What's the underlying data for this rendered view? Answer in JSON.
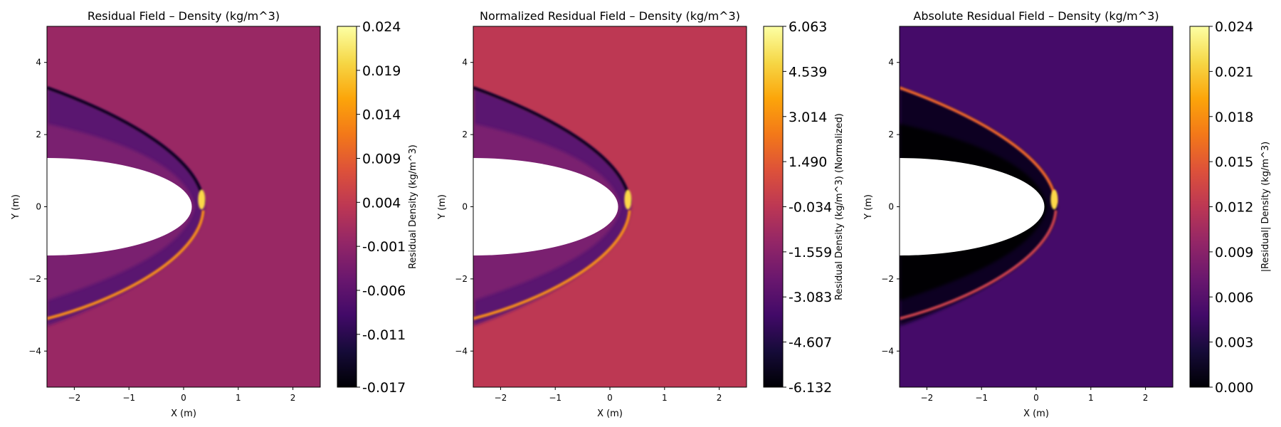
{
  "chart_data": [
    {
      "type": "heatmap",
      "title": "Residual Field – Density (kg/m^3)",
      "xlabel": "X (m)",
      "ylabel": "Y (m)",
      "xlim": [
        -2.5,
        2.5
      ],
      "ylim": [
        -5,
        5
      ],
      "xticks": [
        -2,
        -1,
        0,
        1,
        2
      ],
      "xtick_labels": [
        "−2",
        "−1",
        "0",
        "1",
        "2"
      ],
      "yticks": [
        -4,
        -2,
        0,
        2,
        4
      ],
      "ytick_labels": [
        "−4",
        "−2",
        "0",
        "2",
        "4"
      ],
      "colormap": "inferno",
      "background_value": 0.0,
      "colorbar": {
        "label": "Residual Density (kg/m^3)",
        "range": [
          -0.017,
          0.024
        ],
        "ticks": [
          -0.017,
          -0.011,
          -0.006,
          -0.001,
          0.004,
          0.009,
          0.014,
          0.019,
          0.024
        ],
        "tick_labels": [
          "-0.017",
          "-0.011",
          "-0.006",
          "-0.001",
          "0.004",
          "0.009",
          "0.014",
          "0.019",
          "0.024"
        ]
      }
    },
    {
      "type": "heatmap",
      "title": "Normalized Residual Field – Density (kg/m^3)",
      "xlabel": "X (m)",
      "ylabel": "Y (m)",
      "xlim": [
        -2.5,
        2.5
      ],
      "ylim": [
        -5,
        5
      ],
      "xticks": [
        -2,
        -1,
        0,
        1,
        2
      ],
      "xtick_labels": [
        "−2",
        "−1",
        "0",
        "1",
        "2"
      ],
      "yticks": [
        -4,
        -2,
        0,
        2,
        4
      ],
      "ytick_labels": [
        "−4",
        "−2",
        "0",
        "2",
        "4"
      ],
      "colormap": "inferno",
      "background_value": 0.0,
      "colorbar": {
        "label": "Residual Density (kg/m^3) (Normalized)",
        "range": [
          -6.132,
          6.063
        ],
        "ticks": [
          -6.132,
          -4.607,
          -3.083,
          -1.559,
          -0.034,
          1.49,
          3.014,
          4.539,
          6.063
        ],
        "tick_labels": [
          "-6.132",
          "-4.607",
          "-3.083",
          "-1.559",
          "-0.034",
          "1.490",
          "3.014",
          "4.539",
          "6.063"
        ]
      }
    },
    {
      "type": "heatmap",
      "title": "Absolute Residual Field – Density (kg/m^3)",
      "xlabel": "X (m)",
      "ylabel": "Y (m)",
      "xlim": [
        -2.5,
        2.5
      ],
      "ylim": [
        -5,
        5
      ],
      "xticks": [
        -2,
        -1,
        0,
        1,
        2
      ],
      "xtick_labels": [
        "−2",
        "−1",
        "0",
        "1",
        "2"
      ],
      "yticks": [
        -4,
        -2,
        0,
        2,
        4
      ],
      "ytick_labels": [
        "−4",
        "−2",
        "0",
        "2",
        "4"
      ],
      "colormap": "inferno",
      "background_value": 0.005,
      "colorbar": {
        "label": "|Residual| Density (kg/m^3)",
        "range": [
          0.0,
          0.024
        ],
        "ticks": [
          0.0,
          0.003,
          0.006,
          0.009,
          0.012,
          0.015,
          0.018,
          0.021,
          0.024
        ],
        "tick_labels": [
          "0.000",
          "0.003",
          "0.006",
          "0.009",
          "0.012",
          "0.015",
          "0.018",
          "0.021",
          "0.024"
        ]
      }
    }
  ]
}
